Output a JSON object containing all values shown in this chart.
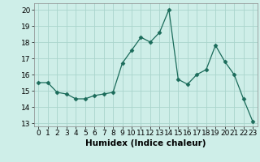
{
  "x": [
    0,
    1,
    2,
    3,
    4,
    5,
    6,
    7,
    8,
    9,
    10,
    11,
    12,
    13,
    14,
    15,
    16,
    17,
    18,
    19,
    20,
    21,
    22,
    23
  ],
  "y": [
    15.5,
    15.5,
    14.9,
    14.8,
    14.5,
    14.5,
    14.7,
    14.8,
    14.9,
    16.7,
    17.5,
    18.3,
    18.0,
    18.6,
    20.0,
    15.7,
    15.4,
    16.0,
    16.3,
    17.8,
    16.8,
    16.0,
    14.5,
    13.1
  ],
  "line_color": "#1a6b5a",
  "marker": "D",
  "marker_size": 2.5,
  "bg_color": "#ceeee8",
  "grid_color": "#aad4cc",
  "xlabel": "Humidex (Indice chaleur)",
  "ylim": [
    12.8,
    20.4
  ],
  "xlim": [
    -0.5,
    23.5
  ],
  "yticks": [
    13,
    14,
    15,
    16,
    17,
    18,
    19,
    20
  ],
  "xticks": [
    0,
    1,
    2,
    3,
    4,
    5,
    6,
    7,
    8,
    9,
    10,
    11,
    12,
    13,
    14,
    15,
    16,
    17,
    18,
    19,
    20,
    21,
    22,
    23
  ],
  "xlabel_fontsize": 7.5,
  "tick_fontsize": 6.5
}
